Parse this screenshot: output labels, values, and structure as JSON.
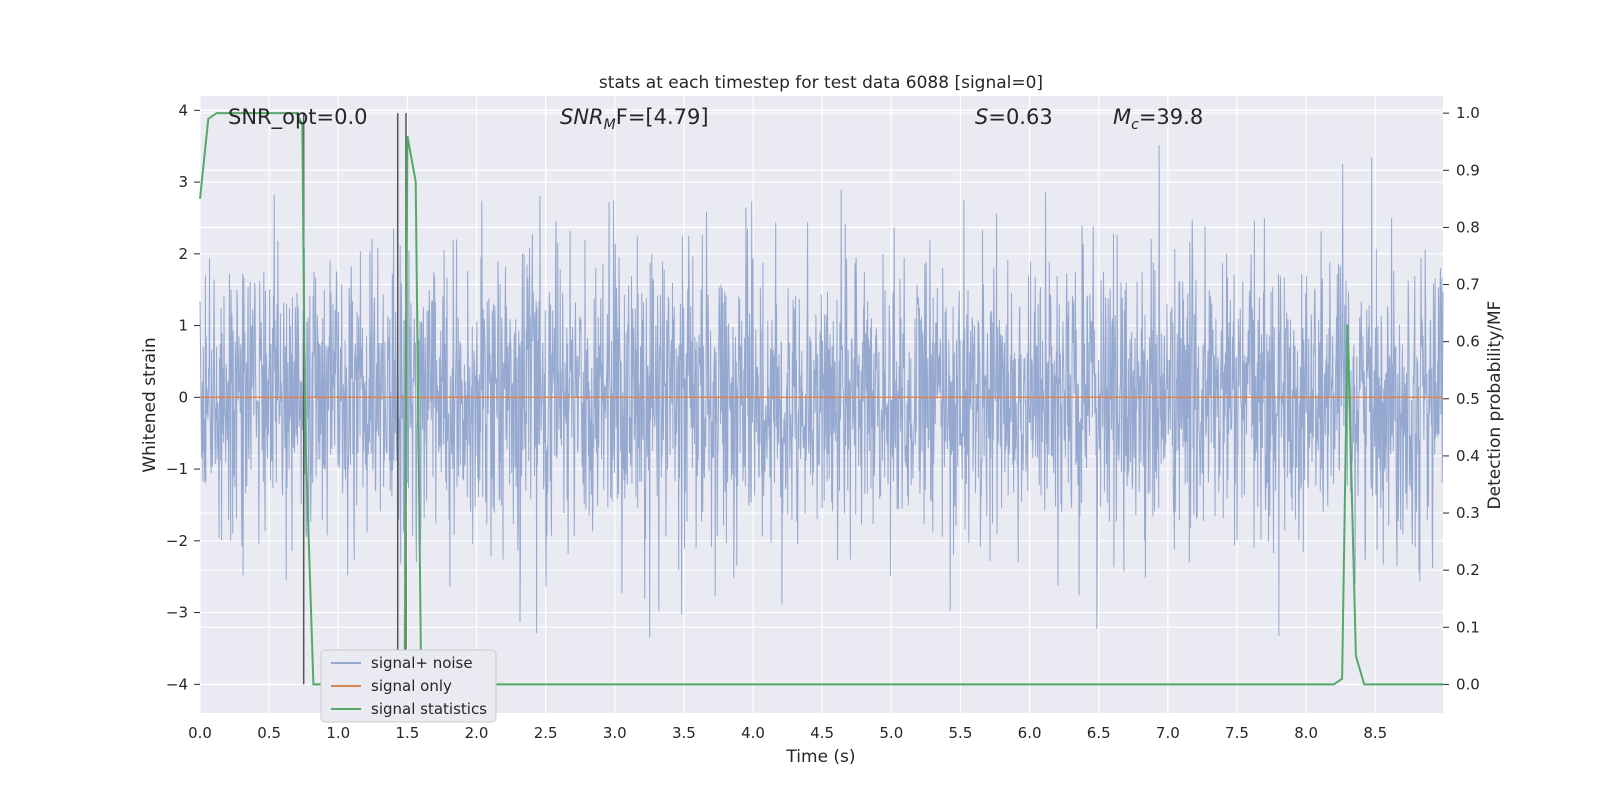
{
  "chart_data": {
    "type": "line",
    "title": "stats at each timestep for test data 6088 [signal=0]",
    "xlabel": "Time (s)",
    "ylabel_left": "Whitened strain",
    "ylabel_right": "Detection probability/MF",
    "xlim": [
      0,
      8.99
    ],
    "ylim_left": [
      -4.4,
      4.2
    ],
    "ylim_right": [
      -0.05,
      1.03
    ],
    "x_ticks": [
      "0.0",
      "0.5",
      "1.0",
      "1.5",
      "2.0",
      "2.5",
      "3.0",
      "3.5",
      "4.0",
      "4.5",
      "5.0",
      "5.5",
      "6.0",
      "6.5",
      "7.0",
      "7.5",
      "8.0",
      "8.5"
    ],
    "x_tick_values": [
      0,
      0.5,
      1.0,
      1.5,
      2.0,
      2.5,
      3.0,
      3.5,
      4.0,
      4.5,
      5.0,
      5.5,
      6.0,
      6.5,
      7.0,
      7.5,
      8.0,
      8.5
    ],
    "y_left_ticks": [
      "4",
      "3",
      "2",
      "1",
      "0",
      "−1",
      "−2",
      "−3",
      "−4"
    ],
    "y_left_tick_values": [
      4,
      3,
      2,
      1,
      0,
      -1,
      -2,
      -3,
      -4
    ],
    "y_right_ticks": [
      "1.0",
      "0.9",
      "0.8",
      "0.7",
      "0.6",
      "0.5",
      "0.4",
      "0.3",
      "0.2",
      "0.1",
      "0.0"
    ],
    "y_right_tick_values": [
      1.0,
      0.9,
      0.8,
      0.7,
      0.6,
      0.5,
      0.4,
      0.3,
      0.2,
      0.1,
      0.0
    ],
    "grid": true,
    "legend_position": "bottom-left",
    "annotations": {
      "snr_opt": "SNR_opt=0.0",
      "snr_mf_prefix": "SNR",
      "snr_mf_sub": "M",
      "snr_mf_suffix": "F=[4.79]",
      "s_prefix": "S",
      "s_suffix": "=0.63",
      "mc_prefix": "M",
      "mc_sub": "c",
      "mc_suffix": "=39.8"
    },
    "vertical_markers": [
      0.75,
      1.43,
      1.49
    ],
    "series": [
      {
        "name": "signal+ noise",
        "axis": "left",
        "color": "#95a8cf",
        "noise_sigma": 1.0,
        "approx_range": [
          -4.0,
          3.8
        ]
      },
      {
        "name": "signal only",
        "axis": "left",
        "color": "#dd8452",
        "x": [
          0,
          8.99
        ],
        "y": [
          0,
          0
        ]
      },
      {
        "name": "signal statistics",
        "axis": "right",
        "color": "#55a868",
        "x": [
          0.0,
          0.06,
          0.12,
          0.2,
          0.3,
          0.4,
          0.5,
          0.6,
          0.66,
          0.7,
          0.74,
          0.76,
          0.82,
          0.9,
          1.0,
          1.1,
          1.2,
          1.3,
          1.38,
          1.43,
          1.48,
          1.5,
          1.56,
          1.6,
          1.65,
          1.7,
          2.0,
          3.0,
          4.0,
          5.0,
          6.0,
          7.0,
          8.0,
          8.2,
          8.26,
          8.3,
          8.36,
          8.42,
          8.5,
          8.99
        ],
        "y": [
          0.85,
          0.99,
          1.0,
          1.0,
          1.0,
          1.0,
          1.0,
          1.0,
          1.0,
          1.0,
          0.98,
          0.45,
          0.0,
          0.0,
          0.0,
          0.0,
          0.0,
          0.0,
          0.0,
          0.0,
          0.0,
          0.96,
          0.88,
          0.0,
          0.0,
          0.0,
          0.0,
          0.0,
          0.0,
          0.0,
          0.0,
          0.0,
          0.0,
          0.0,
          0.01,
          0.63,
          0.05,
          0.0,
          0.0,
          0.0
        ]
      }
    ]
  },
  "colors": {
    "plot_bg": "#eaeaf2",
    "grid": "#ffffff",
    "marker": "#555555",
    "legend_bg": "#eaeaf2",
    "legend_border": "#cccccc"
  }
}
